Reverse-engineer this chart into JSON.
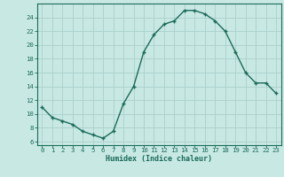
{
  "x": [
    0,
    1,
    2,
    3,
    4,
    5,
    6,
    7,
    8,
    9,
    10,
    11,
    12,
    13,
    14,
    15,
    16,
    17,
    18,
    19,
    20,
    21,
    22,
    23
  ],
  "y": [
    11,
    9.5,
    9,
    8.5,
    7.5,
    7,
    6.5,
    7.5,
    11.5,
    14,
    19,
    21.5,
    23,
    23.5,
    25,
    25,
    24.5,
    23.5,
    22,
    19,
    16,
    14.5,
    14.5,
    13
  ],
  "line_color": "#1a6b5a",
  "bg_color": "#c8e8e4",
  "grid_color": "#aacfcb",
  "xlabel": "Humidex (Indice chaleur)",
  "ylabel_ticks": [
    6,
    8,
    10,
    12,
    14,
    16,
    18,
    20,
    22,
    24
  ],
  "ylim": [
    5.5,
    26.0
  ],
  "xlim": [
    -0.5,
    23.5
  ],
  "xlabel_fontsize": 6.0,
  "tick_fontsize": 5.2,
  "marker_size": 3.5,
  "linewidth": 1.0
}
